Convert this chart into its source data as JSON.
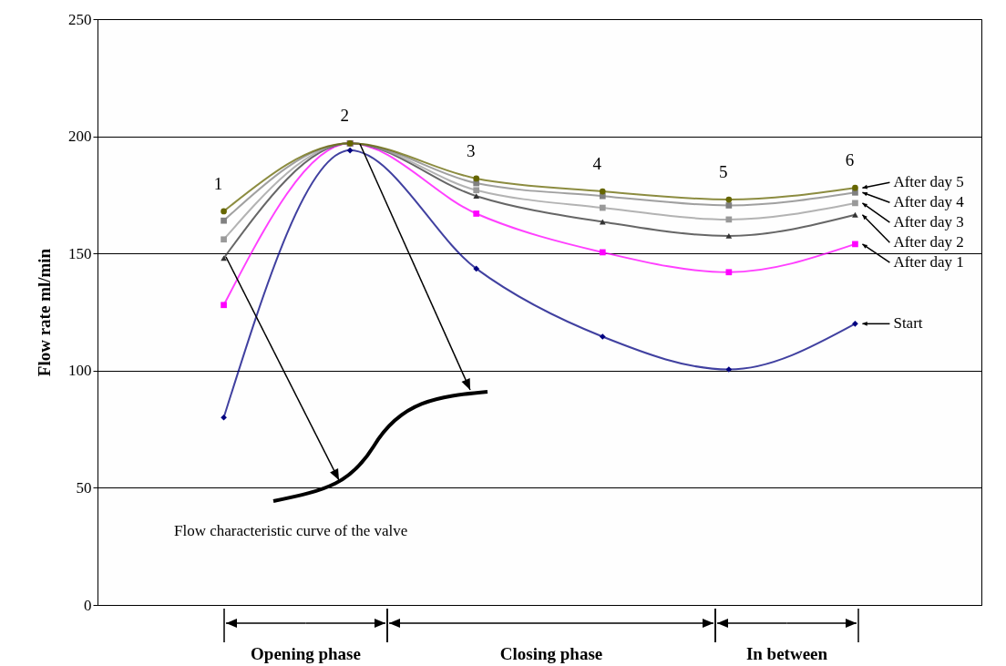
{
  "chart_data": {
    "type": "line",
    "ylabel": "Flow rate ml/min",
    "categories": [
      null,
      null,
      null,
      null,
      null,
      null
    ],
    "ylim": [
      0,
      250
    ],
    "yticks": [
      0,
      50,
      100,
      150,
      200,
      250
    ],
    "grid": "y",
    "series": [
      {
        "name": "Start",
        "color": "#000080",
        "marker": "diamond",
        "values": [
          80,
          194,
          143.5,
          114.5,
          100.5,
          120
        ]
      },
      {
        "name": "After day 1",
        "color": "#ff00ff",
        "marker": "square",
        "values": [
          128,
          197,
          167,
          150.5,
          142,
          154
        ]
      },
      {
        "name": "After day 2",
        "color": "#333333",
        "marker": "triangle",
        "values": [
          148,
          197,
          174.5,
          163.5,
          157.5,
          166.5
        ]
      },
      {
        "name": "After day 3",
        "color": "#999999",
        "marker": "square",
        "values": [
          156,
          197,
          177,
          169.5,
          164.5,
          171.5
        ]
      },
      {
        "name": "After day 4",
        "color": "#808080",
        "marker": "square",
        "values": [
          164,
          197,
          180,
          174.5,
          170.5,
          176
        ]
      },
      {
        "name": "After day 5",
        "color": "#666600",
        "marker": "circle",
        "values": [
          168,
          197,
          182,
          176.5,
          173,
          178
        ]
      }
    ],
    "annotations": [
      "1",
      "2",
      "3",
      "4",
      "5",
      "6",
      "Flow characteristic curve of the valve",
      "Opening phase",
      "Closing phase",
      "In between"
    ]
  }
}
